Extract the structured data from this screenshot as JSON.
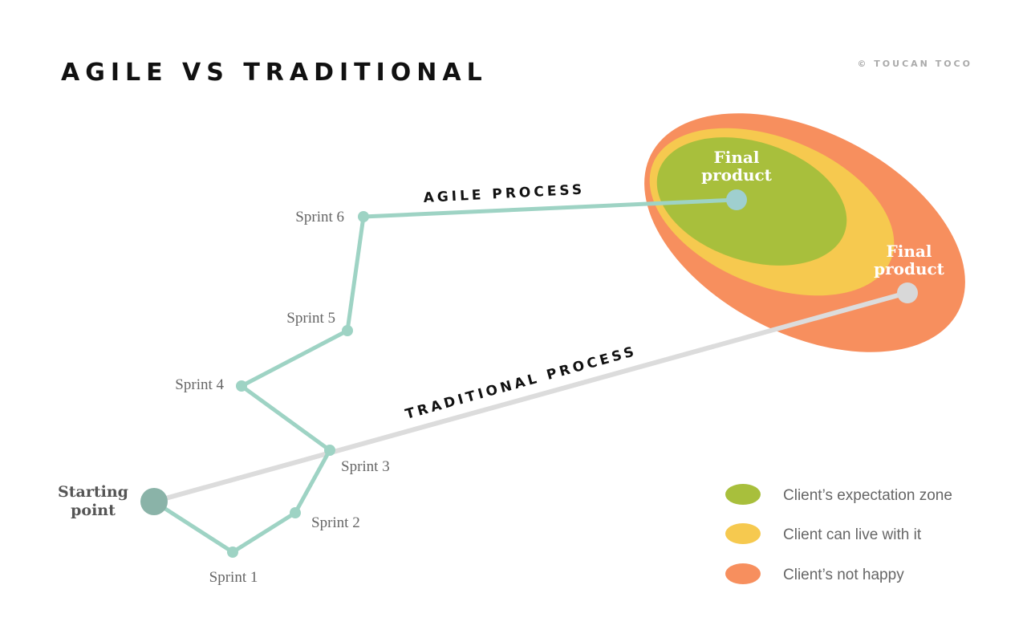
{
  "title": "AGILE VS TRADITIONAL",
  "credit": "© TOUCAN TOCO",
  "agile_label": "AGILE PROCESS",
  "traditional_label": "TRADITIONAL PROCESS",
  "start": {
    "line1": "Starting",
    "line2": "point"
  },
  "sprints": [
    "Sprint 1",
    "Sprint 2",
    "Sprint 3",
    "Sprint 4",
    "Sprint 5",
    "Sprint 6"
  ],
  "final_agile": {
    "line1": "Final",
    "line2": "product"
  },
  "final_traditional": {
    "line1": "Final",
    "line2": "product"
  },
  "legend": [
    {
      "label": "Client’s expectation zone",
      "color": "#a8bf3c"
    },
    {
      "label": "Client can live with it",
      "color": "#f6c94f"
    },
    {
      "label": "Client’s not happy",
      "color": "#f78f5e"
    }
  ],
  "colors": {
    "agile_line": "#9ed3c4",
    "traditional_line": "#dcdcdc",
    "start_dot": "#8ab3a8"
  }
}
